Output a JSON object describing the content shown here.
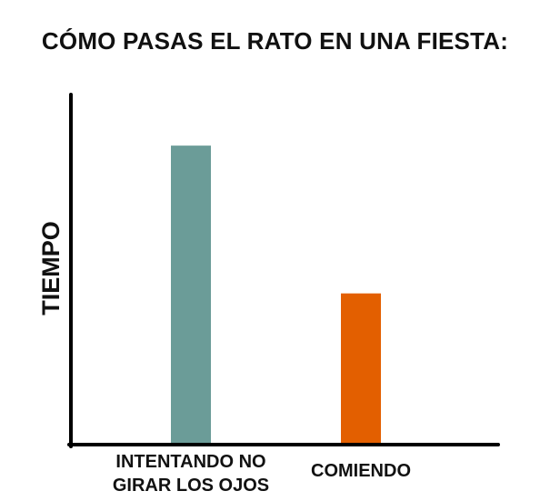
{
  "chart_data": {
    "type": "bar",
    "title": "CÓMO PASAS EL RATO EN UNA FIESTA:",
    "xlabel": "",
    "ylabel": "TIEMPO",
    "categories": [
      [
        "INTENTANDO NO",
        "GIRAR LOS OJOS"
      ],
      [
        "COMIENDO"
      ]
    ],
    "values": [
      87,
      44
    ],
    "ylim": [
      0,
      100
    ],
    "colors": [
      "#6b9c98",
      "#e35f00"
    ],
    "axis_color": "#000000",
    "grid": false,
    "legend": "none"
  }
}
